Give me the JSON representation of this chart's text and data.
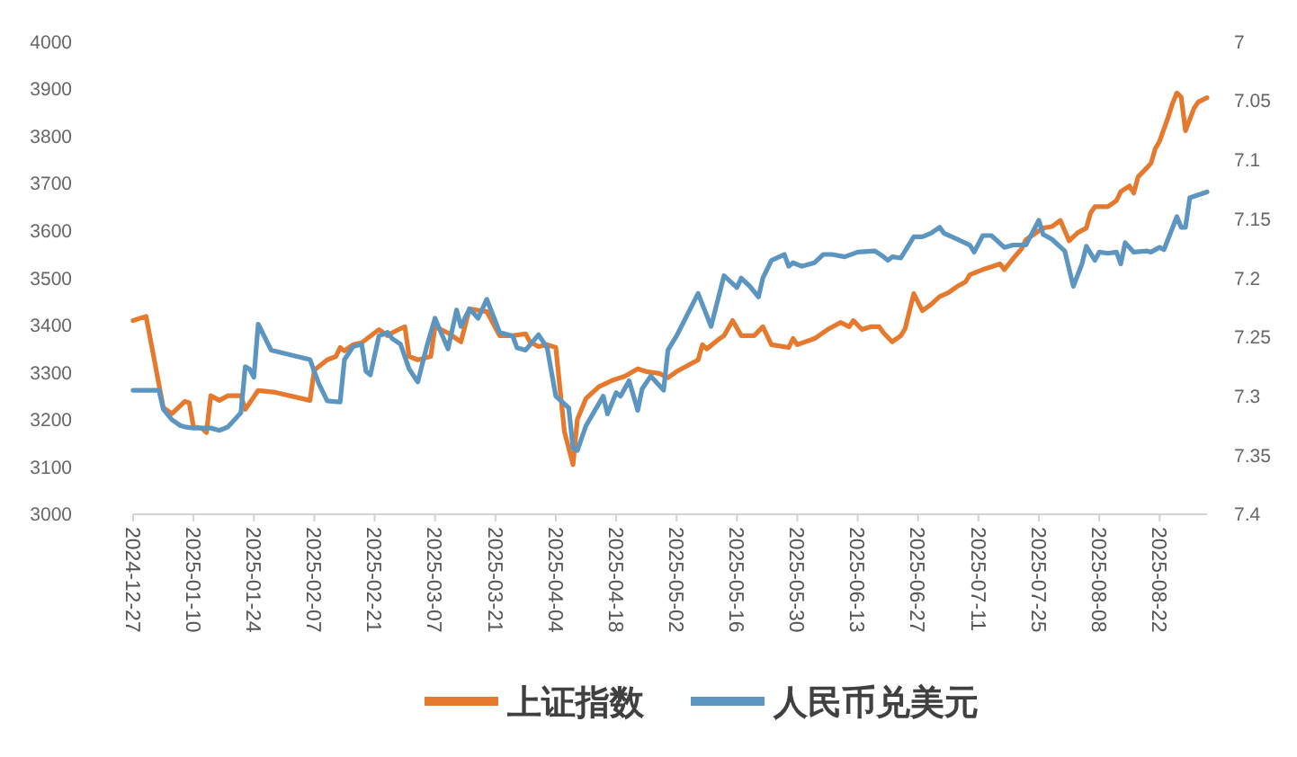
{
  "chart_data": {
    "type": "line",
    "xlim": [
      "2024-12-27",
      "2025-09-02"
    ],
    "xticks": [
      "2024-12-27",
      "2025-01-10",
      "2025-01-24",
      "2025-02-07",
      "2025-02-21",
      "2025-03-07",
      "2025-03-21",
      "2025-04-04",
      "2025-04-18",
      "2025-05-02",
      "2025-05-16",
      "2025-05-30",
      "2025-06-13",
      "2025-06-27",
      "2025-07-11",
      "2025-07-25",
      "2025-08-08",
      "2025-08-22"
    ],
    "ylim": [
      3000,
      4000
    ],
    "yticks": [
      3000,
      3100,
      3200,
      3300,
      3400,
      3500,
      3600,
      3700,
      3800,
      3900,
      4000
    ],
    "y2lim": [
      7.4,
      7.0
    ],
    "y2ticks": [
      7,
      7.05,
      7.1,
      7.15,
      7.2,
      7.25,
      7.3,
      7.35,
      7.4
    ],
    "legend": "bottom",
    "series": [
      {
        "name": "上证指数",
        "color": "#e57a2e",
        "x": [
          "2024-12-27",
          "2024-12-30",
          "2025-01-03",
          "2025-01-05",
          "2025-01-08",
          "2025-01-09",
          "2025-01-10",
          "2025-01-12",
          "2025-01-13",
          "2025-01-14",
          "2025-01-16",
          "2025-01-18",
          "2025-01-21",
          "2025-01-22",
          "2025-01-25",
          "2025-01-29",
          "2025-02-06",
          "2025-02-07",
          "2025-02-10",
          "2025-02-12",
          "2025-02-13",
          "2025-02-14",
          "2025-02-16",
          "2025-02-18",
          "2025-02-22",
          "2025-02-24",
          "2025-02-25",
          "2025-02-27",
          "2025-02-28",
          "2025-03-01",
          "2025-03-03",
          "2025-03-06",
          "2025-03-07",
          "2025-03-10",
          "2025-03-13",
          "2025-03-15",
          "2025-03-19",
          "2025-03-22",
          "2025-03-25",
          "2025-03-28",
          "2025-03-29",
          "2025-03-31",
          "2025-04-02",
          "2025-04-04",
          "2025-04-05",
          "2025-04-06",
          "2025-04-08",
          "2025-04-09",
          "2025-04-11",
          "2025-04-14",
          "2025-04-17",
          "2025-04-20",
          "2025-04-23",
          "2025-04-25",
          "2025-04-28",
          "2025-04-30",
          "2025-05-02",
          "2025-05-07",
          "2025-05-08",
          "2025-05-09",
          "2025-05-12",
          "2025-05-13",
          "2025-05-15",
          "2025-05-17",
          "2025-05-20",
          "2025-05-22",
          "2025-05-24",
          "2025-05-28",
          "2025-05-29",
          "2025-05-30",
          "2025-06-03",
          "2025-06-06",
          "2025-06-09",
          "2025-06-11",
          "2025-06-12",
          "2025-06-14",
          "2025-06-16",
          "2025-06-18",
          "2025-06-19",
          "2025-06-21",
          "2025-06-23",
          "2025-06-24",
          "2025-06-26",
          "2025-06-28",
          "2025-06-30",
          "2025-07-02",
          "2025-07-04",
          "2025-07-06",
          "2025-07-08",
          "2025-07-09",
          "2025-07-12",
          "2025-07-14",
          "2025-07-16",
          "2025-07-17",
          "2025-07-19",
          "2025-07-21",
          "2025-07-22",
          "2025-07-25",
          "2025-07-26",
          "2025-07-28",
          "2025-07-30",
          "2025-08-01",
          "2025-08-03",
          "2025-08-05",
          "2025-08-06",
          "2025-08-07",
          "2025-08-10",
          "2025-08-12",
          "2025-08-13",
          "2025-08-15",
          "2025-08-16",
          "2025-08-17",
          "2025-08-19",
          "2025-08-20",
          "2025-08-21",
          "2025-08-22",
          "2025-08-24",
          "2025-08-25",
          "2025-08-26",
          "2025-08-27",
          "2025-08-28",
          "2025-08-30",
          "2025-08-31",
          "2025-09-02"
        ],
        "values": [
          3410,
          3419,
          3226,
          3213,
          3239,
          3236,
          3185,
          3182,
          3173,
          3251,
          3241,
          3251,
          3251,
          3222,
          3262,
          3258,
          3241,
          3305,
          3327,
          3334,
          3353,
          3346,
          3359,
          3363,
          3391,
          3378,
          3384,
          3393,
          3397,
          3334,
          3327,
          3334,
          3397,
          3384,
          3365,
          3435,
          3429,
          3378,
          3378,
          3382,
          3365,
          3355,
          3359,
          3353,
          3264,
          3175,
          3105,
          3201,
          3245,
          3270,
          3283,
          3292,
          3308,
          3302,
          3298,
          3289,
          3302,
          3327,
          3359,
          3350,
          3372,
          3378,
          3410,
          3378,
          3378,
          3397,
          3359,
          3353,
          3372,
          3359,
          3372,
          3391,
          3406,
          3397,
          3410,
          3391,
          3397,
          3397,
          3384,
          3365,
          3378,
          3393,
          3467,
          3431,
          3444,
          3461,
          3469,
          3482,
          3492,
          3507,
          3518,
          3524,
          3530,
          3518,
          3541,
          3562,
          3581,
          3600,
          3606,
          3609,
          3622,
          3579,
          3596,
          3606,
          3638,
          3651,
          3651,
          3664,
          3683,
          3695,
          3680,
          3714,
          3733,
          3743,
          3774,
          3790,
          3841,
          3870,
          3892,
          3883,
          3812,
          3860,
          3873,
          3882
        ]
      },
      {
        "name": "人民币兑美元",
        "color": "#5b95c0",
        "axis": "y2",
        "x": [
          "2024-12-27",
          "2025-01-02",
          "2025-01-03",
          "2025-01-05",
          "2025-01-07",
          "2025-01-08",
          "2025-01-10",
          "2025-01-14",
          "2025-01-16",
          "2025-01-18",
          "2025-01-21",
          "2025-01-22",
          "2025-01-23",
          "2025-01-24",
          "2025-01-25",
          "2025-01-28",
          "2025-02-06",
          "2025-02-08",
          "2025-02-10",
          "2025-02-13",
          "2025-02-14",
          "2025-02-16",
          "2025-02-18",
          "2025-02-19",
          "2025-02-20",
          "2025-02-22",
          "2025-02-24",
          "2025-02-25",
          "2025-02-27",
          "2025-03-01",
          "2025-03-03",
          "2025-03-05",
          "2025-03-07",
          "2025-03-10",
          "2025-03-12",
          "2025-03-13",
          "2025-03-15",
          "2025-03-17",
          "2025-03-19",
          "2025-03-22",
          "2025-03-25",
          "2025-03-26",
          "2025-03-28",
          "2025-03-31",
          "2025-04-02",
          "2025-04-04",
          "2025-04-07",
          "2025-04-08",
          "2025-04-09",
          "2025-04-11",
          "2025-04-15",
          "2025-04-16",
          "2025-04-18",
          "2025-04-19",
          "2025-04-21",
          "2025-04-23",
          "2025-04-24",
          "2025-04-26",
          "2025-04-29",
          "2025-04-30",
          "2025-05-02",
          "2025-05-07",
          "2025-05-10",
          "2025-05-13",
          "2025-05-16",
          "2025-05-17",
          "2025-05-19",
          "2025-05-21",
          "2025-05-22",
          "2025-05-24",
          "2025-05-27",
          "2025-05-28",
          "2025-05-29",
          "2025-05-31",
          "2025-06-03",
          "2025-06-05",
          "2025-06-07",
          "2025-06-10",
          "2025-06-13",
          "2025-06-17",
          "2025-06-19",
          "2025-06-20",
          "2025-06-21",
          "2025-06-23",
          "2025-06-26",
          "2025-06-28",
          "2025-06-30",
          "2025-07-02",
          "2025-07-03",
          "2025-07-06",
          "2025-07-09",
          "2025-07-10",
          "2025-07-12",
          "2025-07-14",
          "2025-07-17",
          "2025-07-19",
          "2025-07-22",
          "2025-07-25",
          "2025-07-26",
          "2025-07-28",
          "2025-07-31",
          "2025-08-02",
          "2025-08-04",
          "2025-08-05",
          "2025-08-07",
          "2025-08-08",
          "2025-08-10",
          "2025-08-12",
          "2025-08-13",
          "2025-08-14",
          "2025-08-16",
          "2025-08-19",
          "2025-08-20",
          "2025-08-22",
          "2025-08-23",
          "2025-08-26",
          "2025-08-27",
          "2025-08-28",
          "2025-08-29",
          "2025-09-02"
        ],
        "values": [
          7.295,
          7.295,
          7.311,
          7.32,
          7.325,
          7.326,
          7.327,
          7.327,
          7.329,
          7.326,
          7.314,
          7.275,
          7.277,
          7.284,
          7.239,
          7.261,
          7.269,
          7.289,
          7.304,
          7.305,
          7.269,
          7.258,
          7.256,
          7.279,
          7.282,
          7.249,
          7.246,
          7.251,
          7.256,
          7.277,
          7.288,
          7.259,
          7.234,
          7.26,
          7.227,
          7.241,
          7.226,
          7.234,
          7.218,
          7.246,
          7.249,
          7.259,
          7.261,
          7.248,
          7.259,
          7.3,
          7.31,
          7.344,
          7.346,
          7.325,
          7.3,
          7.315,
          7.297,
          7.3,
          7.287,
          7.312,
          7.294,
          7.283,
          7.295,
          7.261,
          7.249,
          7.213,
          7.241,
          7.198,
          7.208,
          7.2,
          7.207,
          7.216,
          7.2,
          7.185,
          7.18,
          7.19,
          7.187,
          7.19,
          7.187,
          7.18,
          7.18,
          7.182,
          7.178,
          7.177,
          7.182,
          7.185,
          7.182,
          7.183,
          7.165,
          7.165,
          7.162,
          7.157,
          7.162,
          7.167,
          7.172,
          7.178,
          7.164,
          7.164,
          7.174,
          7.172,
          7.172,
          7.151,
          7.163,
          7.167,
          7.177,
          7.207,
          7.188,
          7.173,
          7.185,
          7.178,
          7.179,
          7.178,
          7.188,
          7.17,
          7.178,
          7.177,
          7.178,
          7.174,
          7.176,
          7.148,
          7.157,
          7.157,
          7.132,
          7.127
        ]
      }
    ]
  }
}
